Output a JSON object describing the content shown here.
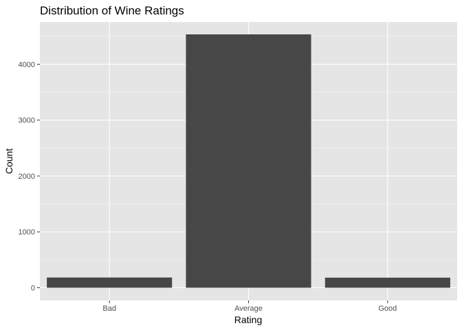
{
  "chart_data": {
    "type": "bar",
    "title": "Distribution of Wine Ratings",
    "xlabel": "Rating",
    "ylabel": "Count",
    "categories": [
      "Bad",
      "Average",
      "Good"
    ],
    "values": [
      183,
      4535,
      180
    ],
    "ylim": [
      0,
      4775
    ],
    "yticks": [
      0,
      1000,
      2000,
      3000,
      4000
    ],
    "ytick_labels": [
      "0",
      "1000",
      "2000",
      "3000",
      "4000"
    ],
    "grid": true,
    "legend": "none",
    "colors": {
      "bar": "#474747",
      "panel": "#e5e5e5",
      "grid_major": "#ffffff",
      "grid_minor": "#f2f2f2",
      "tick": "#333333"
    }
  }
}
